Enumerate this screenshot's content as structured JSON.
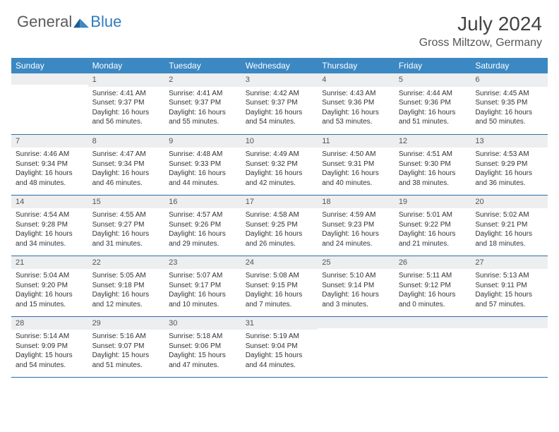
{
  "brand": {
    "general": "General",
    "blue": "Blue"
  },
  "title": "July 2024",
  "location": "Gross Miltzow, Germany",
  "colors": {
    "header_bg": "#3b88c3",
    "header_text": "#ffffff",
    "daynum_bg": "#eceef0",
    "row_divider": "#2e6da4",
    "text": "#333333",
    "brand_blue": "#2e7cbf",
    "brand_gray": "#5a5a5a"
  },
  "weekdays": [
    "Sunday",
    "Monday",
    "Tuesday",
    "Wednesday",
    "Thursday",
    "Friday",
    "Saturday"
  ],
  "weeks": [
    [
      {
        "n": "",
        "lines": []
      },
      {
        "n": "1",
        "lines": [
          "Sunrise: 4:41 AM",
          "Sunset: 9:37 PM",
          "Daylight: 16 hours and 56 minutes."
        ]
      },
      {
        "n": "2",
        "lines": [
          "Sunrise: 4:41 AM",
          "Sunset: 9:37 PM",
          "Daylight: 16 hours and 55 minutes."
        ]
      },
      {
        "n": "3",
        "lines": [
          "Sunrise: 4:42 AM",
          "Sunset: 9:37 PM",
          "Daylight: 16 hours and 54 minutes."
        ]
      },
      {
        "n": "4",
        "lines": [
          "Sunrise: 4:43 AM",
          "Sunset: 9:36 PM",
          "Daylight: 16 hours and 53 minutes."
        ]
      },
      {
        "n": "5",
        "lines": [
          "Sunrise: 4:44 AM",
          "Sunset: 9:36 PM",
          "Daylight: 16 hours and 51 minutes."
        ]
      },
      {
        "n": "6",
        "lines": [
          "Sunrise: 4:45 AM",
          "Sunset: 9:35 PM",
          "Daylight: 16 hours and 50 minutes."
        ]
      }
    ],
    [
      {
        "n": "7",
        "lines": [
          "Sunrise: 4:46 AM",
          "Sunset: 9:34 PM",
          "Daylight: 16 hours and 48 minutes."
        ]
      },
      {
        "n": "8",
        "lines": [
          "Sunrise: 4:47 AM",
          "Sunset: 9:34 PM",
          "Daylight: 16 hours and 46 minutes."
        ]
      },
      {
        "n": "9",
        "lines": [
          "Sunrise: 4:48 AM",
          "Sunset: 9:33 PM",
          "Daylight: 16 hours and 44 minutes."
        ]
      },
      {
        "n": "10",
        "lines": [
          "Sunrise: 4:49 AM",
          "Sunset: 9:32 PM",
          "Daylight: 16 hours and 42 minutes."
        ]
      },
      {
        "n": "11",
        "lines": [
          "Sunrise: 4:50 AM",
          "Sunset: 9:31 PM",
          "Daylight: 16 hours and 40 minutes."
        ]
      },
      {
        "n": "12",
        "lines": [
          "Sunrise: 4:51 AM",
          "Sunset: 9:30 PM",
          "Daylight: 16 hours and 38 minutes."
        ]
      },
      {
        "n": "13",
        "lines": [
          "Sunrise: 4:53 AM",
          "Sunset: 9:29 PM",
          "Daylight: 16 hours and 36 minutes."
        ]
      }
    ],
    [
      {
        "n": "14",
        "lines": [
          "Sunrise: 4:54 AM",
          "Sunset: 9:28 PM",
          "Daylight: 16 hours and 34 minutes."
        ]
      },
      {
        "n": "15",
        "lines": [
          "Sunrise: 4:55 AM",
          "Sunset: 9:27 PM",
          "Daylight: 16 hours and 31 minutes."
        ]
      },
      {
        "n": "16",
        "lines": [
          "Sunrise: 4:57 AM",
          "Sunset: 9:26 PM",
          "Daylight: 16 hours and 29 minutes."
        ]
      },
      {
        "n": "17",
        "lines": [
          "Sunrise: 4:58 AM",
          "Sunset: 9:25 PM",
          "Daylight: 16 hours and 26 minutes."
        ]
      },
      {
        "n": "18",
        "lines": [
          "Sunrise: 4:59 AM",
          "Sunset: 9:23 PM",
          "Daylight: 16 hours and 24 minutes."
        ]
      },
      {
        "n": "19",
        "lines": [
          "Sunrise: 5:01 AM",
          "Sunset: 9:22 PM",
          "Daylight: 16 hours and 21 minutes."
        ]
      },
      {
        "n": "20",
        "lines": [
          "Sunrise: 5:02 AM",
          "Sunset: 9:21 PM",
          "Daylight: 16 hours and 18 minutes."
        ]
      }
    ],
    [
      {
        "n": "21",
        "lines": [
          "Sunrise: 5:04 AM",
          "Sunset: 9:20 PM",
          "Daylight: 16 hours and 15 minutes."
        ]
      },
      {
        "n": "22",
        "lines": [
          "Sunrise: 5:05 AM",
          "Sunset: 9:18 PM",
          "Daylight: 16 hours and 12 minutes."
        ]
      },
      {
        "n": "23",
        "lines": [
          "Sunrise: 5:07 AM",
          "Sunset: 9:17 PM",
          "Daylight: 16 hours and 10 minutes."
        ]
      },
      {
        "n": "24",
        "lines": [
          "Sunrise: 5:08 AM",
          "Sunset: 9:15 PM",
          "Daylight: 16 hours and 7 minutes."
        ]
      },
      {
        "n": "25",
        "lines": [
          "Sunrise: 5:10 AM",
          "Sunset: 9:14 PM",
          "Daylight: 16 hours and 3 minutes."
        ]
      },
      {
        "n": "26",
        "lines": [
          "Sunrise: 5:11 AM",
          "Sunset: 9:12 PM",
          "Daylight: 16 hours and 0 minutes."
        ]
      },
      {
        "n": "27",
        "lines": [
          "Sunrise: 5:13 AM",
          "Sunset: 9:11 PM",
          "Daylight: 15 hours and 57 minutes."
        ]
      }
    ],
    [
      {
        "n": "28",
        "lines": [
          "Sunrise: 5:14 AM",
          "Sunset: 9:09 PM",
          "Daylight: 15 hours and 54 minutes."
        ]
      },
      {
        "n": "29",
        "lines": [
          "Sunrise: 5:16 AM",
          "Sunset: 9:07 PM",
          "Daylight: 15 hours and 51 minutes."
        ]
      },
      {
        "n": "30",
        "lines": [
          "Sunrise: 5:18 AM",
          "Sunset: 9:06 PM",
          "Daylight: 15 hours and 47 minutes."
        ]
      },
      {
        "n": "31",
        "lines": [
          "Sunrise: 5:19 AM",
          "Sunset: 9:04 PM",
          "Daylight: 15 hours and 44 minutes."
        ]
      },
      {
        "n": "",
        "lines": []
      },
      {
        "n": "",
        "lines": []
      },
      {
        "n": "",
        "lines": []
      }
    ]
  ]
}
